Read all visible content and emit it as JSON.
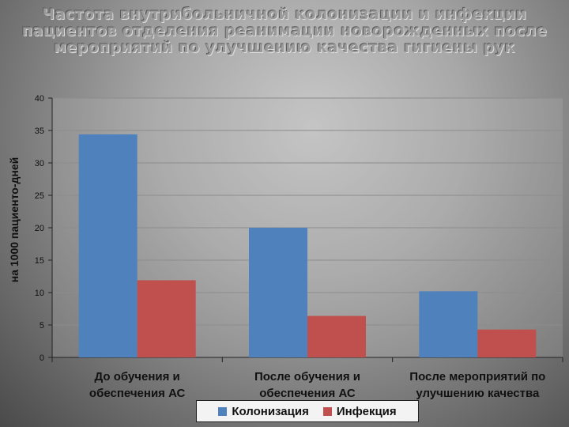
{
  "title": "Частота внутрибольничной колонизации и инфекции пациентов отделения реанимации новорожденных после мероприятий по улучшению качества гигиены рук",
  "colors": {
    "series_colonization": "#4f81bd",
    "series_infection": "#c0504d"
  },
  "chart_data": {
    "type": "bar",
    "title": "Частота внутрибольничной колонизации и инфекции пациентов отделения реанимации новорожденных после мероприятий по улучшению качества гигиены рук",
    "ylabel": "на 1000 пациенто-дней",
    "xlabel": "",
    "ylim": [
      0,
      40
    ],
    "yticks": [
      0,
      5,
      10,
      15,
      20,
      25,
      30,
      35,
      40
    ],
    "grid": true,
    "legend": "bottom",
    "categories": [
      "До обучения и обеспечения АС",
      "После обучения и обеспечения АС",
      "После мероприятий по улучшению качества"
    ],
    "category_lines": [
      [
        "До обучения и",
        "обеспечения АС"
      ],
      [
        "После обучения и",
        "обеспечения АС"
      ],
      [
        "После мероприятий по",
        "улучшению качества"
      ]
    ],
    "series": [
      {
        "name": "Колонизация",
        "values": [
          34.4,
          20.0,
          10.2
        ]
      },
      {
        "name": "Инфекция",
        "values": [
          11.9,
          6.4,
          4.3
        ]
      }
    ]
  }
}
